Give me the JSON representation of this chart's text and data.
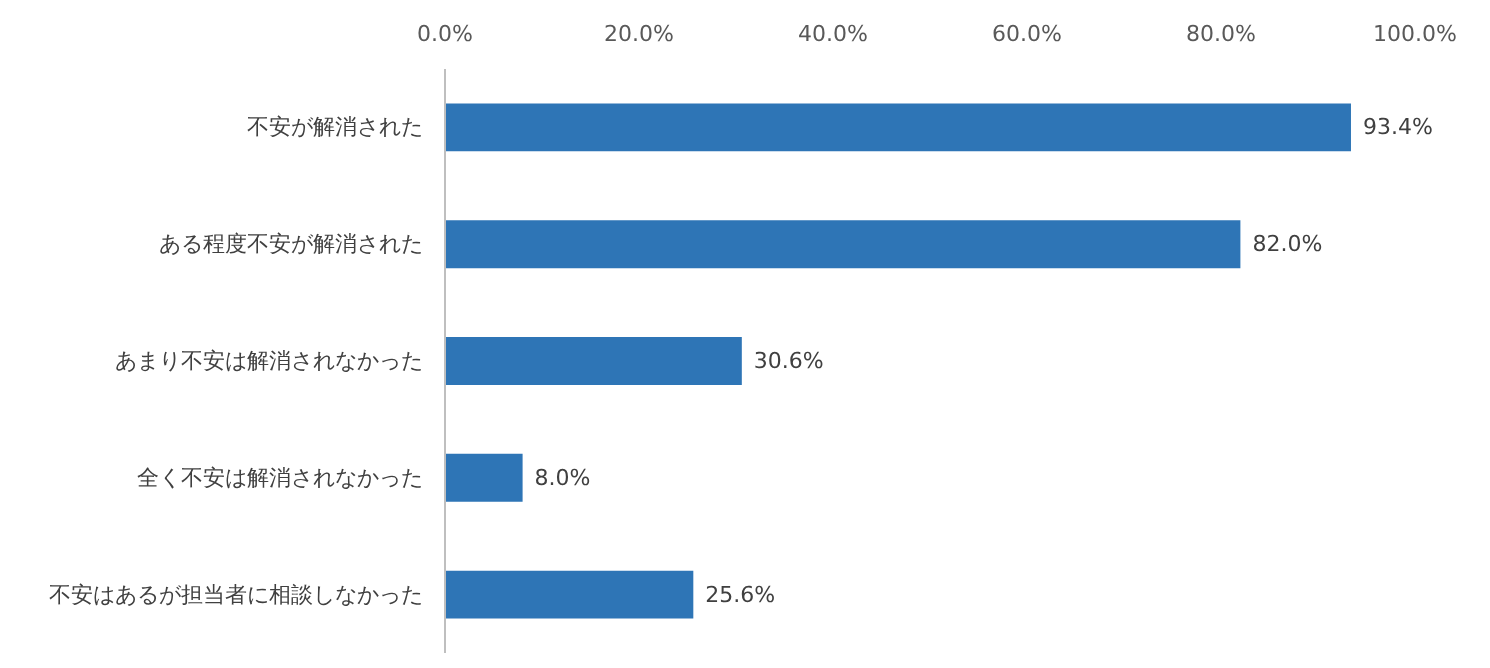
{
  "chart_data": {
    "type": "bar",
    "orientation": "horizontal",
    "categories": [
      "不安が解消された",
      "ある程度不安が解消された",
      "あまり不安は解消されなかった",
      "全く不安は解消されなかった",
      "不安はあるが担当者に相談しなかった"
    ],
    "values": [
      93.4,
      82.0,
      30.6,
      8.0,
      25.6
    ],
    "value_labels": [
      "93.4%",
      "82.0%",
      "30.6%",
      "8.0%",
      "25.6%"
    ],
    "color": "#2e75b6",
    "xlim": [
      0,
      100
    ],
    "xticks": [
      {
        "value": 0,
        "label": "0.0%"
      },
      {
        "value": 20,
        "label": "20.0%"
      },
      {
        "value": 40,
        "label": "40.0%"
      },
      {
        "value": 60,
        "label": "60.0%"
      },
      {
        "value": 80,
        "label": "80.0%"
      },
      {
        "value": 100,
        "label": "100.0%"
      }
    ],
    "grid": false
  }
}
